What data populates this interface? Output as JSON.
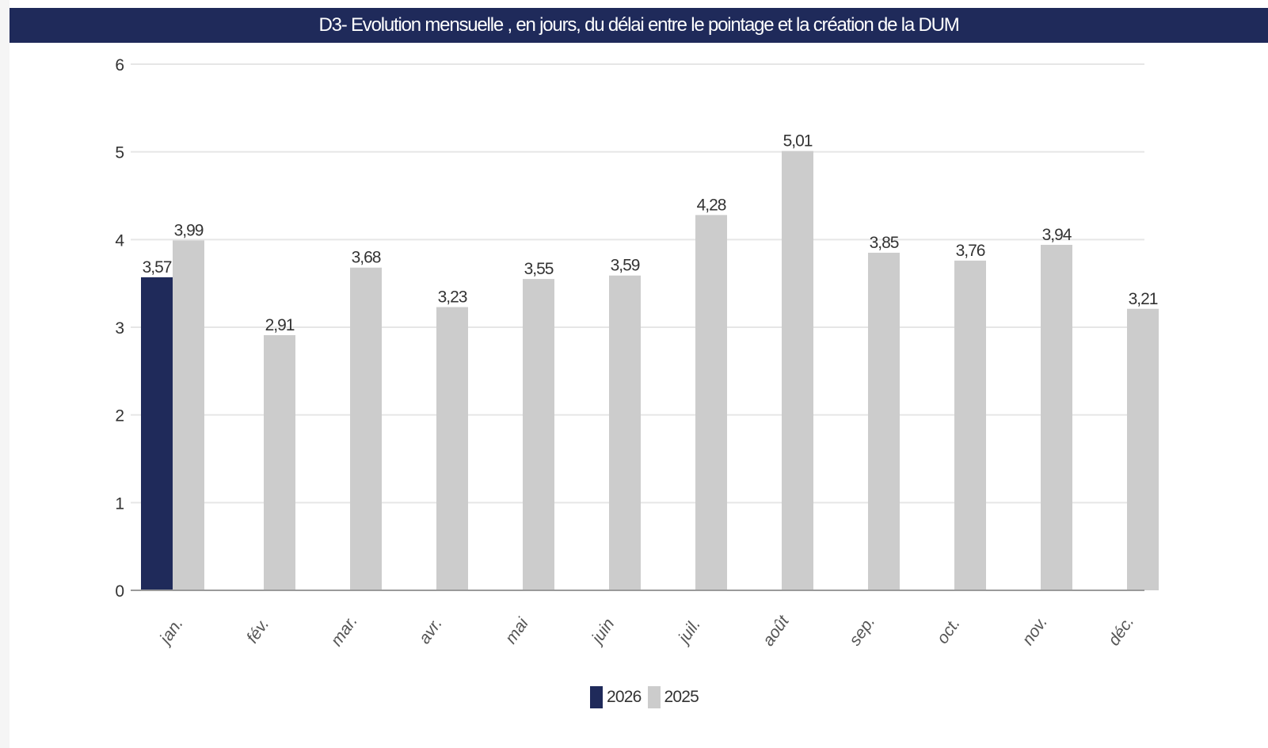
{
  "title": "D3- Evolution mensuelle , en jours, du délai entre le pointage et la création de la DUM",
  "colors": {
    "title_bg": "#1f2a5a",
    "series_2026": "#1f2a5a",
    "series_2025": "#cccccc",
    "grid": "#e6e6e6",
    "axis": "#9a9a9a",
    "text": "#333333"
  },
  "chart_data": {
    "type": "bar",
    "title": "D3- Evolution mensuelle , en jours, du délai entre le pointage et la création de la DUM",
    "categories": [
      "jan.",
      "fév.",
      "mar.",
      "avr.",
      "mai",
      "juin",
      "juil.",
      "août",
      "sep.",
      "oct.",
      "nov.",
      "déc."
    ],
    "series": [
      {
        "name": "2026",
        "values": [
          3.57,
          null,
          null,
          null,
          null,
          null,
          null,
          null,
          null,
          null,
          null,
          null
        ],
        "labels": [
          "3,57",
          "",
          "",
          "",
          "",
          "",
          "",
          "",
          "",
          "",
          "",
          ""
        ],
        "color": "#1f2a5a"
      },
      {
        "name": "2025",
        "values": [
          3.99,
          2.91,
          3.68,
          3.23,
          3.55,
          3.59,
          4.28,
          5.01,
          3.85,
          3.76,
          3.94,
          3.21
        ],
        "labels": [
          "3,99",
          "2,91",
          "3,68",
          "3,23",
          "3,55",
          "3,59",
          "4,28",
          "5,01",
          "3,85",
          "3,76",
          "3,94",
          "3,21"
        ],
        "color": "#cccccc"
      }
    ],
    "yticks": [
      "0",
      "1",
      "2",
      "3",
      "4",
      "5",
      "6"
    ],
    "ylim": [
      0,
      6
    ],
    "xlabel": "",
    "ylabel": "",
    "grid": true,
    "legend_position": "bottom-center"
  },
  "legend": [
    {
      "label": "2026",
      "color": "#1f2a5a"
    },
    {
      "label": "2025",
      "color": "#cccccc"
    }
  ]
}
